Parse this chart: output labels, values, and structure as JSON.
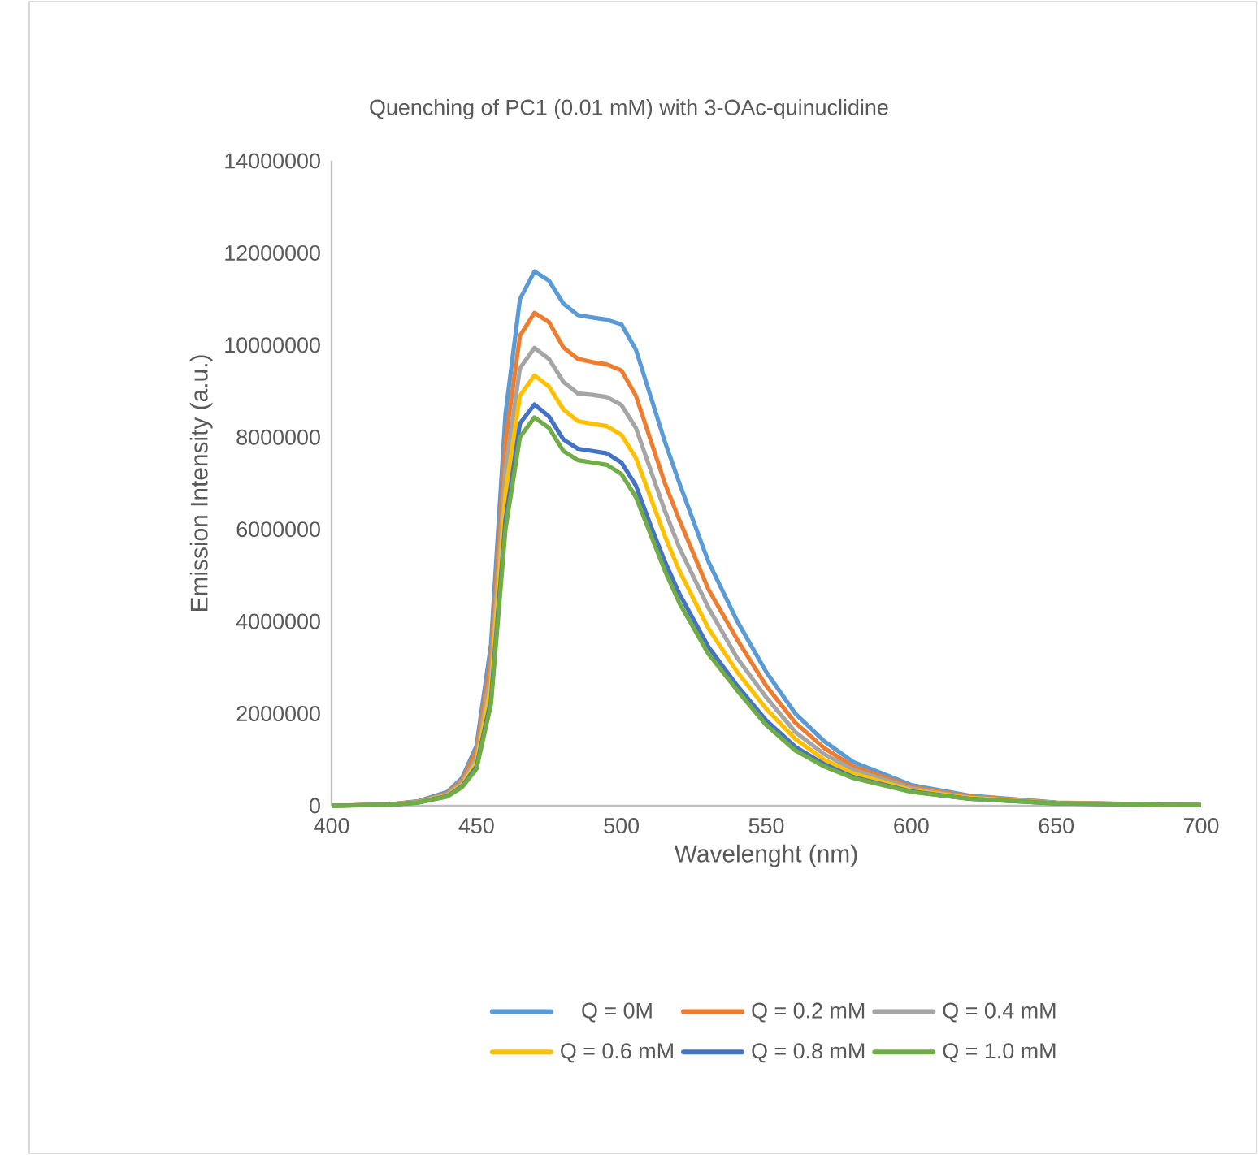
{
  "chart_data": {
    "type": "line",
    "title": "Quenching of PC1 (0.01 mM) with 3-OAc-quinuclidine",
    "xlabel": "Wavelenght (nm)",
    "ylabel": "Emission Intensity (a.u.)",
    "x": [
      400,
      420,
      430,
      440,
      445,
      450,
      455,
      460,
      465,
      470,
      475,
      480,
      485,
      490,
      495,
      500,
      505,
      510,
      515,
      520,
      530,
      540,
      550,
      560,
      570,
      580,
      600,
      620,
      650,
      700
    ],
    "series": [
      {
        "name": "Q = 0M",
        "color": "#5b9bd5",
        "values": [
          0,
          30000,
          100000,
          300000,
          600000,
          1300000,
          3500000,
          8500000,
          11000000,
          11600000,
          11400000,
          10900000,
          10650000,
          10600000,
          10550000,
          10450000,
          9900000,
          8900000,
          7900000,
          7000000,
          5300000,
          4000000,
          2900000,
          2000000,
          1400000,
          950000,
          450000,
          220000,
          70000,
          10000
        ]
      },
      {
        "name": "Q = 0.2 mM",
        "color": "#ed7d31",
        "values": [
          0,
          30000,
          90000,
          270000,
          550000,
          1200000,
          3200000,
          7900000,
          10200000,
          10700000,
          10500000,
          9950000,
          9700000,
          9630000,
          9580000,
          9450000,
          8900000,
          7950000,
          7000000,
          6200000,
          4700000,
          3600000,
          2600000,
          1800000,
          1250000,
          850000,
          410000,
          200000,
          65000,
          10000
        ]
      },
      {
        "name": "Q = 0.4 mM",
        "color": "#a5a5a5",
        "values": [
          0,
          25000,
          85000,
          250000,
          500000,
          1050000,
          2900000,
          7300000,
          9500000,
          9940000,
          9700000,
          9200000,
          8950000,
          8920000,
          8870000,
          8700000,
          8200000,
          7300000,
          6400000,
          5600000,
          4300000,
          3200000,
          2350000,
          1600000,
          1120000,
          780000,
          380000,
          180000,
          60000,
          10000
        ]
      },
      {
        "name": "Q = 0.6 mM",
        "color": "#ffc000",
        "values": [
          0,
          22000,
          80000,
          230000,
          450000,
          950000,
          2600000,
          6800000,
          8900000,
          9340000,
          9100000,
          8600000,
          8350000,
          8290000,
          8240000,
          8050000,
          7550000,
          6700000,
          5850000,
          5100000,
          3850000,
          2900000,
          2100000,
          1450000,
          1000000,
          700000,
          340000,
          170000,
          55000,
          10000
        ]
      },
      {
        "name": "Q = 0.8 mM",
        "color": "#4472c4",
        "values": [
          0,
          20000,
          70000,
          210000,
          420000,
          850000,
          2300000,
          6200000,
          8300000,
          8710000,
          8450000,
          7950000,
          7750000,
          7700000,
          7650000,
          7450000,
          6950000,
          6100000,
          5300000,
          4600000,
          3450000,
          2600000,
          1850000,
          1280000,
          900000,
          620000,
          310000,
          150000,
          50000,
          10000
        ]
      },
      {
        "name": "Q = 1.0 mM",
        "color": "#70ad47",
        "values": [
          0,
          20000,
          70000,
          200000,
          400000,
          800000,
          2200000,
          6000000,
          8000000,
          8430000,
          8200000,
          7700000,
          7500000,
          7450000,
          7400000,
          7200000,
          6700000,
          5900000,
          5100000,
          4400000,
          3300000,
          2500000,
          1750000,
          1200000,
          850000,
          600000,
          300000,
          150000,
          50000,
          10000
        ]
      }
    ],
    "xlim": [
      400,
      700
    ],
    "xticks": [
      400,
      450,
      500,
      550,
      600,
      650,
      700
    ],
    "ylim": [
      0,
      14000000
    ],
    "yticks": [
      0,
      2000000,
      4000000,
      6000000,
      8000000,
      10000000,
      12000000,
      14000000
    ],
    "legend": "bottom",
    "marker": "none",
    "line_style": "solid"
  }
}
